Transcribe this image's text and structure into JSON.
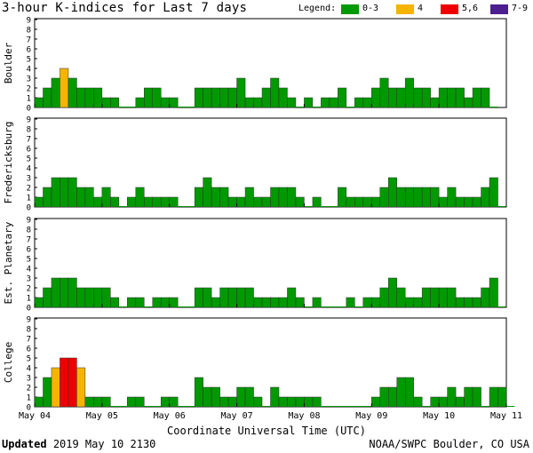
{
  "header": {
    "title": "3-hour K-indices for Last 7 days"
  },
  "legend": {
    "label": "Legend:",
    "items": [
      {
        "label": "0-3",
        "color": "#009900"
      },
      {
        "label": "4",
        "color": "#f4b400"
      },
      {
        "label": "5,6",
        "color": "#ee0000"
      },
      {
        "label": "7-9",
        "color": "#4b1f8e"
      }
    ]
  },
  "footer": {
    "updated_label": "Updated",
    "updated_value": "2019 May 10 2130",
    "credit": "NOAA/SWPC Boulder, CO USA"
  },
  "chart_data": {
    "type": "bar",
    "title": "3-hour K-indices for Last 7 days",
    "xlabel": "Coordinate Universal Time (UTC)",
    "x_ticks": [
      "May 04",
      "May 05",
      "May 06",
      "May 07",
      "May 08",
      "May 09",
      "May 10",
      "May 11"
    ],
    "ylim": [
      0,
      9
    ],
    "y_ticks": [
      0,
      1,
      2,
      3,
      4,
      5,
      6,
      7,
      8,
      9
    ],
    "grid": false,
    "color_scale": {
      "0-3": "#009900",
      "4": "#f4b400",
      "5,6": "#ee0000",
      "7-9": "#4b1f8e"
    },
    "panels": [
      {
        "name": "Boulder",
        "values": [
          1,
          2,
          3,
          4,
          3,
          2,
          2,
          2,
          1,
          1,
          0,
          0,
          1,
          2,
          2,
          1,
          1,
          0,
          0,
          2,
          2,
          2,
          2,
          2,
          3,
          1,
          1,
          2,
          3,
          2,
          1,
          0,
          1,
          0,
          1,
          1,
          2,
          0,
          1,
          1,
          2,
          3,
          2,
          2,
          3,
          2,
          2,
          1,
          2,
          2,
          2,
          1,
          2,
          2,
          0
        ]
      },
      {
        "name": "Fredericksburg",
        "values": [
          1,
          2,
          3,
          3,
          3,
          2,
          2,
          1,
          2,
          1,
          0,
          1,
          2,
          1,
          1,
          1,
          1,
          0,
          0,
          2,
          3,
          2,
          2,
          1,
          1,
          2,
          1,
          1,
          2,
          2,
          2,
          1,
          0,
          1,
          0,
          0,
          2,
          1,
          1,
          1,
          1,
          2,
          3,
          2,
          2,
          2,
          2,
          2,
          1,
          2,
          1,
          1,
          1,
          2,
          3,
          0
        ]
      },
      {
        "name": "Est. Planetary",
        "values": [
          1,
          2,
          3,
          3,
          3,
          2,
          2,
          2,
          2,
          1,
          0,
          1,
          1,
          0,
          1,
          1,
          1,
          0,
          0,
          2,
          2,
          1,
          2,
          2,
          2,
          2,
          1,
          1,
          1,
          1,
          2,
          1,
          0,
          1,
          0,
          0,
          0,
          1,
          0,
          1,
          1,
          2,
          3,
          2,
          1,
          1,
          2,
          2,
          2,
          2,
          1,
          1,
          1,
          2,
          3,
          0
        ]
      },
      {
        "name": "College",
        "values": [
          1,
          3,
          4,
          5,
          5,
          4,
          1,
          1,
          1,
          0,
          0,
          1,
          1,
          0,
          0,
          1,
          1,
          0,
          0,
          3,
          2,
          2,
          1,
          1,
          2,
          2,
          1,
          0,
          2,
          1,
          1,
          1,
          1,
          1,
          0,
          0,
          0,
          0,
          0,
          0,
          1,
          2,
          2,
          3,
          3,
          1,
          0,
          1,
          1,
          2,
          1,
          2,
          2,
          0,
          2,
          2,
          0
        ]
      }
    ]
  }
}
